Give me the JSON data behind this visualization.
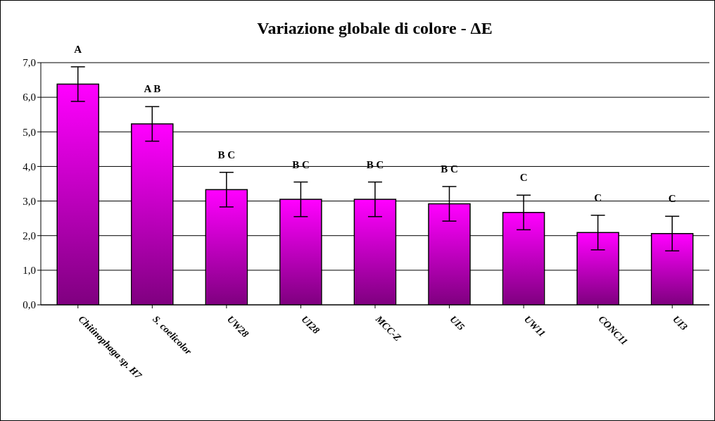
{
  "chart_data": {
    "type": "bar",
    "title": "Variazione globale di colore - ΔE",
    "categories": [
      "Chitinophaga sp. H7",
      "S. coelicolor",
      "UW28",
      "UI28",
      "MCC-Z",
      "UI5",
      "UW11",
      "CONC11",
      "UI3"
    ],
    "values": [
      6.38,
      5.23,
      3.33,
      3.05,
      3.05,
      2.92,
      2.67,
      2.09,
      2.06
    ],
    "errors": [
      0.5,
      0.5,
      0.5,
      0.5,
      0.5,
      0.5,
      0.5,
      0.5,
      0.5
    ],
    "color": "#ff00ff",
    "ylim": [
      0,
      7
    ],
    "yticks": [
      {
        "value": 0,
        "label": "0,0"
      },
      {
        "value": 1,
        "label": "1,0"
      },
      {
        "value": 2,
        "label": "2,0"
      },
      {
        "value": 3,
        "label": "3,0"
      },
      {
        "value": 4,
        "label": "4,0"
      },
      {
        "value": 5,
        "label": "5,0"
      },
      {
        "value": 6,
        "label": "6,0"
      },
      {
        "value": 7,
        "label": "7,0"
      }
    ],
    "grid": "y",
    "annotations": [
      {
        "text": "A",
        "x": "Chitinophaga sp. H7",
        "y": 6.88
      },
      {
        "text": "A B",
        "x": "S. coelicolor",
        "y": 5.73
      },
      {
        "text": "B C",
        "x": "UW28",
        "y": 3.83
      },
      {
        "text": "B C",
        "x": "UI28",
        "y": 3.55
      },
      {
        "text": "B C",
        "x": "MCC-Z",
        "y": 3.55
      },
      {
        "text": "B C",
        "x": "UI5",
        "y": 3.42
      },
      {
        "text": "C",
        "x": "UW11",
        "y": 3.17
      },
      {
        "text": "C",
        "x": "CONC11",
        "y": 2.59
      },
      {
        "text": "C",
        "x": "UI3",
        "y": 2.56
      }
    ]
  }
}
